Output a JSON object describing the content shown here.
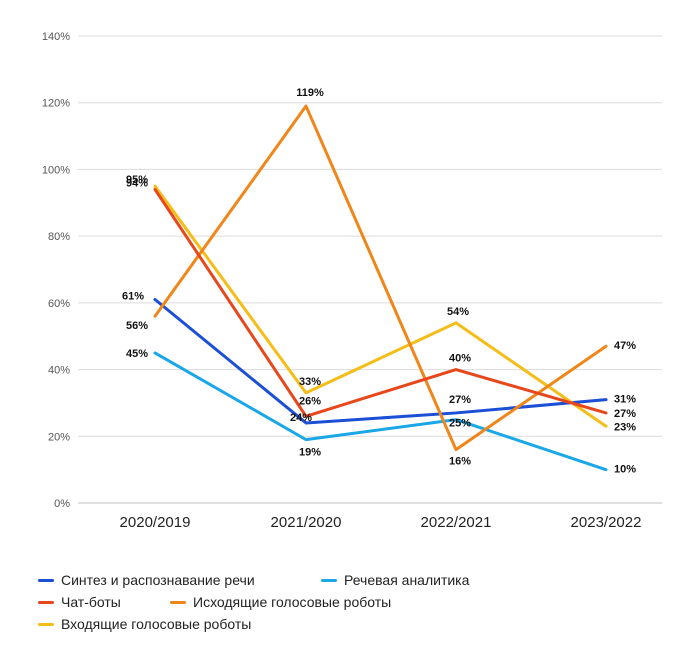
{
  "chart_data": {
    "type": "line",
    "categories": [
      "2020/2019",
      "2021/2020",
      "2022/2021",
      "2023/2022"
    ],
    "ylim": [
      0,
      140
    ],
    "yticks": [
      0,
      20,
      40,
      60,
      80,
      100,
      120,
      140
    ],
    "ytick_labels": [
      "0%",
      "20%",
      "40%",
      "60%",
      "80%",
      "100%",
      "120%",
      "140%"
    ],
    "grid": true,
    "legend_position": "bottom",
    "series": [
      {
        "name": "Синтез и распознавание речи",
        "color": "#1a4fd6",
        "values": [
          61,
          24,
          27,
          31
        ],
        "labels": [
          "61%",
          "24%",
          "27%",
          "31%"
        ]
      },
      {
        "name": "Речевая аналитика",
        "color": "#1aa7e8",
        "values": [
          45,
          19,
          25,
          10
        ],
        "labels": [
          "45%",
          "19%",
          "25%",
          "10%"
        ]
      },
      {
        "name": "Чат-боты",
        "color": "#e8471b",
        "values": [
          94,
          26,
          40,
          27
        ],
        "labels": [
          "94%",
          "26%",
          "40%",
          "27%"
        ]
      },
      {
        "name": "Исходящие голосовые роботы",
        "color": "#f0861a",
        "values": [
          56,
          119,
          16,
          47
        ],
        "labels": [
          "56%",
          "119%",
          "16%",
          "47%"
        ]
      },
      {
        "name": "Входящие голосовые роботы",
        "color": "#f5bd17",
        "values": [
          95,
          33,
          54,
          23
        ],
        "labels": [
          "95%",
          "33%",
          "54%",
          "23%"
        ]
      }
    ]
  }
}
